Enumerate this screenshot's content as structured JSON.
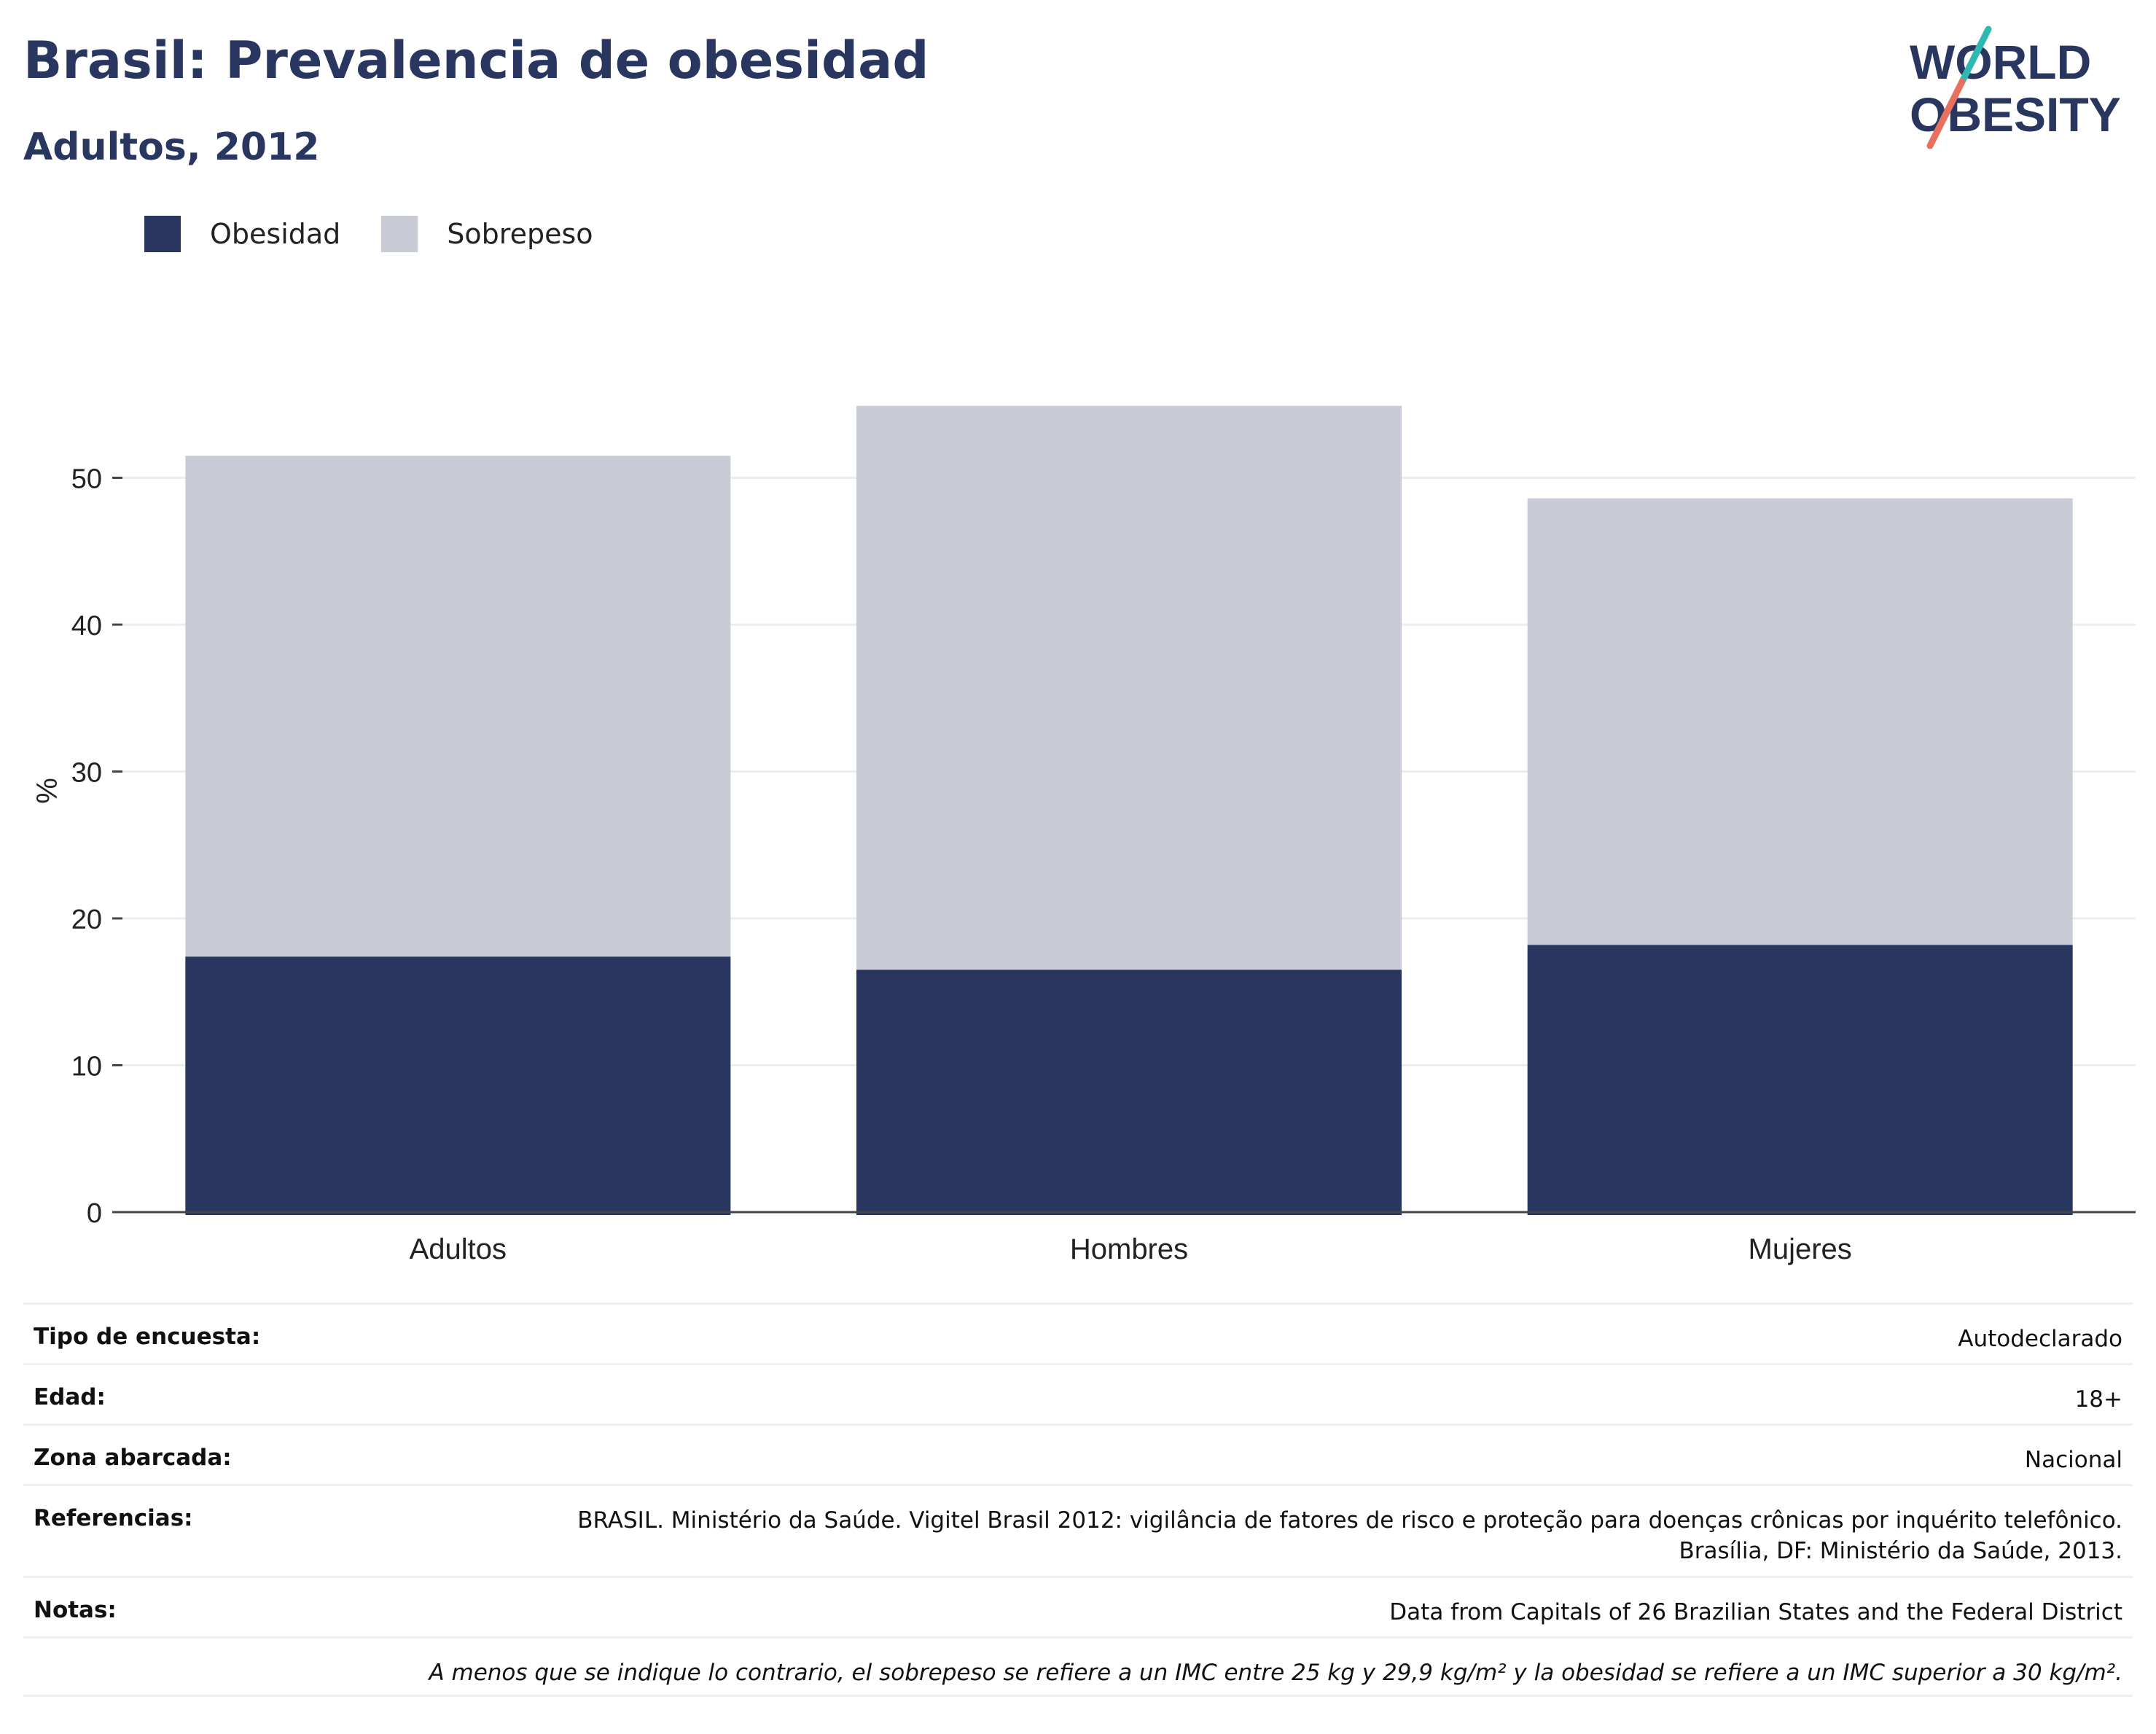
{
  "header": {
    "title": "Brasil: Prevalencia de obesidad",
    "subtitle": "Adultos, 2012"
  },
  "logo": {
    "line1": "WORLD",
    "line2": "OBESITY",
    "slash_colors": [
      "#2fb9b3",
      "#e8705f"
    ],
    "text_color": "#29365f"
  },
  "legend": {
    "items": [
      {
        "label": "Obesidad",
        "color": "#29365f"
      },
      {
        "label": "Sobrepeso",
        "color": "#c9cbd6"
      }
    ]
  },
  "chart_data": {
    "type": "bar",
    "stacked": true,
    "categories": [
      "Adultos",
      "Hombres",
      "Mujeres"
    ],
    "series": [
      {
        "name": "Obesidad",
        "color": "#29365f",
        "values": [
          17.4,
          16.5,
          18.2
        ]
      },
      {
        "name": "Sobrepeso",
        "color": "#c9cbd6",
        "values": [
          34.1,
          38.4,
          30.4
        ]
      }
    ],
    "ylabel": "%",
    "ylim": [
      0,
      55
    ],
    "yticks": [
      0,
      10,
      20,
      30,
      40,
      50
    ],
    "grid": true,
    "legend_position": "top-left"
  },
  "details": {
    "rows": [
      {
        "label": "Tipo de encuesta:",
        "value": "Autodeclarado"
      },
      {
        "label": "Edad:",
        "value": "18+"
      },
      {
        "label": "Zona abarcada:",
        "value": "Nacional"
      },
      {
        "label": "Referencias:",
        "value_line1": "BRASIL. Ministério da Saúde. Vigitel Brasil 2012: vigilância de fatores de risco e proteção para doenças crônicas por inquérito telefônico.",
        "value_line2": "Brasília, DF: Ministério da Saúde, 2013."
      },
      {
        "label": "Notas:",
        "value": "Data from Capitals of 26 Brazilian States and the Federal District"
      }
    ],
    "footnote": "A menos que se indique lo contrario, el sobrepeso se refiere a un IMC entre 25 kg y 29,9 kg/m² y la obesidad se refiere a un IMC superior a 30 kg/m²."
  }
}
